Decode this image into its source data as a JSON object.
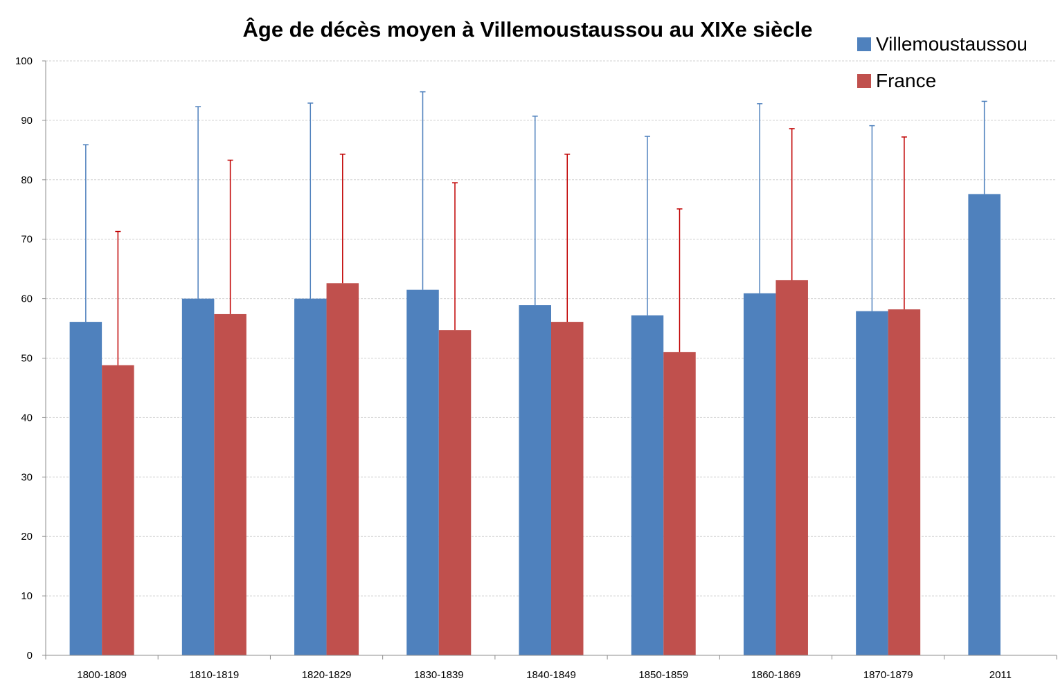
{
  "chart_data": {
    "type": "bar",
    "title": "Âge de décès moyen à Villemoustaussou au XIXe siècle",
    "xlabel": "",
    "ylabel": "",
    "ylim": [
      0,
      100
    ],
    "yticks": [
      0,
      10,
      20,
      30,
      40,
      50,
      60,
      70,
      80,
      90,
      100
    ],
    "grid": true,
    "legend_position": "top-right",
    "categories": [
      "1800-1809",
      "1810-1819",
      "1820-1829",
      "1830-1839",
      "1840-1849",
      "1850-1859",
      "1860-1869",
      "1870-1879",
      "2011"
    ],
    "series": [
      {
        "name": "Villemoustaussou",
        "color": "#4f81bd",
        "values": [
          56.1,
          60.0,
          60.0,
          61.5,
          58.9,
          57.2,
          60.9,
          57.9,
          77.6
        ],
        "error_upper": [
          29.8,
          32.3,
          32.9,
          33.3,
          31.8,
          30.1,
          31.9,
          31.2,
          15.6
        ]
      },
      {
        "name": "France",
        "color": "#c0504d",
        "values": [
          48.8,
          57.4,
          62.6,
          54.7,
          56.1,
          51.0,
          63.1,
          58.2,
          null
        ],
        "error_upper": [
          22.5,
          25.9,
          21.7,
          24.8,
          28.2,
          24.1,
          25.5,
          29.0,
          null
        ]
      }
    ]
  }
}
